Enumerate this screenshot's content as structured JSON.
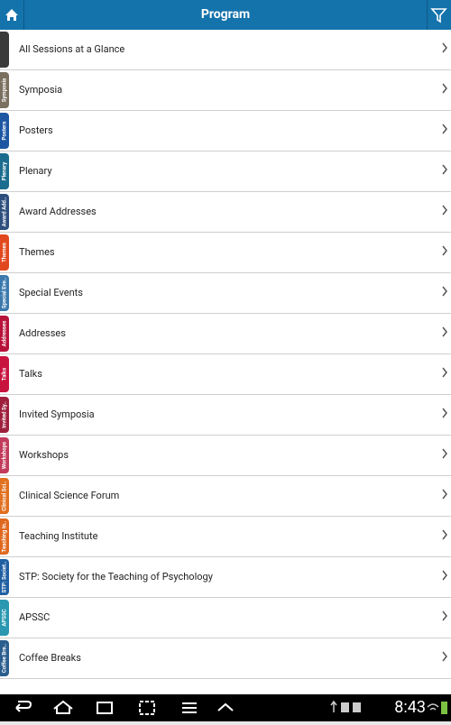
{
  "header": {
    "title": "Program"
  },
  "items": [
    {
      "label": "All Sessions at a Glance",
      "color": "#3a3a3a"
    },
    {
      "label": "Symposia",
      "tab": "Symposia",
      "color": "#7b705f"
    },
    {
      "label": "Posters",
      "tab": "Posters",
      "color": "#1d57a3"
    },
    {
      "label": "Plenary",
      "tab": "Plenary",
      "color": "#1b6c8e"
    },
    {
      "label": "Award Addresses",
      "tab": "Award Add..",
      "color": "#2d4f7d"
    },
    {
      "label": "Themes",
      "tab": "Themes",
      "color": "#e2481d"
    },
    {
      "label": "Special Events",
      "tab": "Special Eve..",
      "color": "#3b79ad"
    },
    {
      "label": "Addresses",
      "tab": "Addresses",
      "color": "#b8123a"
    },
    {
      "label": "Talks",
      "tab": "Talks",
      "color": "#c8133f"
    },
    {
      "label": "Invited Symposia",
      "tab": "Invited Sy..",
      "color": "#9e1f3c"
    },
    {
      "label": "Workshops",
      "tab": "Workshops",
      "color": "#c23b5c"
    },
    {
      "label": "Clinical Science Forum",
      "tab": "Clinical Sci..",
      "color": "#e1701f"
    },
    {
      "label": "Teaching Institute",
      "tab": "Teaching In..",
      "color": "#e0681e"
    },
    {
      "label": "STP: Society for the Teaching of Psychology",
      "tab": "STP: Societ..",
      "color": "#205fa2"
    },
    {
      "label": "APSSC",
      "tab": "APSSC",
      "color": "#2998b0"
    },
    {
      "label": "Coffee Breaks",
      "tab": "Coffee Bre..",
      "color": "#2a5e8e"
    }
  ],
  "status": {
    "time": "8:43"
  }
}
